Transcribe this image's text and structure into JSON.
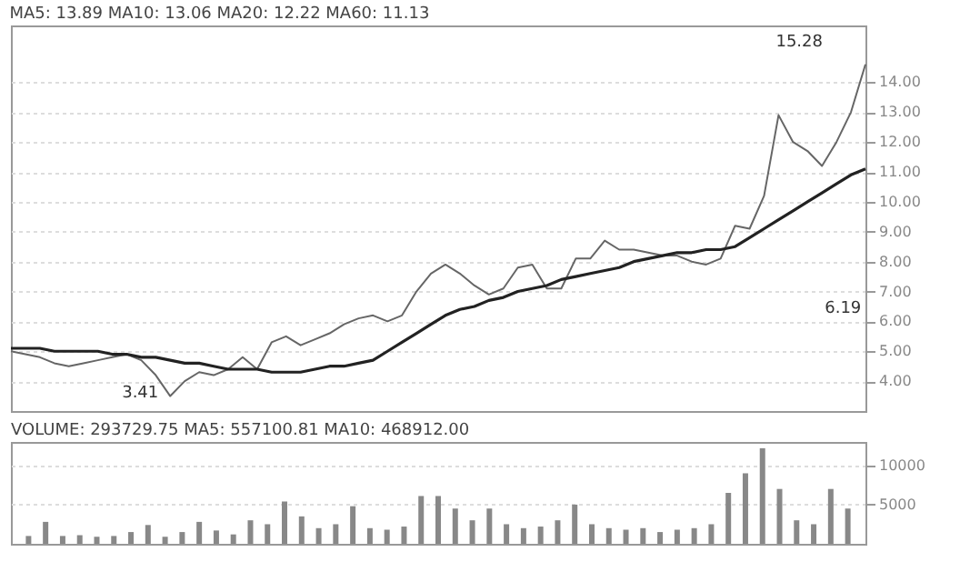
{
  "chart_data": [
    {
      "type": "line",
      "subtitle": "MA5: 13.89  MA10: 13.06  MA20: 12.22  MA60: 11.13",
      "categories": [
        null,
        null,
        null,
        null,
        null,
        null,
        null,
        null,
        null,
        null,
        null,
        null,
        null,
        null,
        null,
        null,
        null,
        null,
        null,
        null,
        null,
        null,
        null,
        null,
        null,
        null,
        null,
        null,
        null,
        null,
        null,
        null,
        null,
        null,
        null,
        null,
        null,
        null,
        null,
        null,
        null,
        null,
        null,
        null,
        null,
        null,
        null,
        null,
        null,
        null,
        null,
        null,
        null,
        null,
        null,
        null,
        null,
        null,
        null,
        null
      ],
      "series": [
        {
          "color": "#666666",
          "values": [
            5.0,
            4.9,
            4.8,
            4.6,
            4.5,
            4.6,
            4.7,
            4.8,
            4.9,
            4.7,
            4.2,
            3.5,
            4.0,
            4.3,
            4.2,
            4.4,
            4.8,
            4.4,
            5.3,
            5.5,
            5.2,
            5.4,
            5.6,
            5.9,
            6.1,
            6.2,
            6.0,
            6.2,
            7.0,
            7.6,
            7.9,
            7.6,
            7.2,
            6.9,
            7.1,
            7.8,
            7.9,
            7.1,
            7.1,
            8.1,
            8.1,
            8.7,
            8.4,
            8.4,
            8.3,
            8.2,
            8.2,
            8.0,
            7.9,
            8.1,
            9.2,
            9.1,
            10.2,
            12.9,
            12.0,
            11.7,
            11.2,
            12.0,
            13.0,
            14.6
          ]
        },
        {
          "color": "#222222",
          "values": [
            5.1,
            5.1,
            5.1,
            5.0,
            5.0,
            5.0,
            5.0,
            4.9,
            4.9,
            4.8,
            4.8,
            4.7,
            4.6,
            4.6,
            4.5,
            4.4,
            4.4,
            4.4,
            4.3,
            4.3,
            4.3,
            4.4,
            4.5,
            4.5,
            4.6,
            4.7,
            5.0,
            5.3,
            5.6,
            5.9,
            6.2,
            6.4,
            6.5,
            6.7,
            6.8,
            7.0,
            7.1,
            7.2,
            7.4,
            7.5,
            7.6,
            7.7,
            7.8,
            8.0,
            8.1,
            8.2,
            8.3,
            8.3,
            8.4,
            8.4,
            8.5,
            8.8,
            9.1,
            9.4,
            9.7,
            10.0,
            10.3,
            10.6,
            10.9,
            11.1
          ]
        }
      ],
      "ylim": [
        3.0,
        15.9
      ],
      "yticks": [
        {
          "value": 4,
          "label": "4.00"
        },
        {
          "value": 5,
          "label": "5.00"
        },
        {
          "value": 6,
          "label": "6.00"
        },
        {
          "value": 7,
          "label": "7.00"
        },
        {
          "value": 8,
          "label": "8.00"
        },
        {
          "value": 9,
          "label": "9.00"
        },
        {
          "value": 10,
          "label": "10.00"
        },
        {
          "value": 11,
          "label": "11.00"
        },
        {
          "value": 12,
          "label": "12.00"
        },
        {
          "value": 13,
          "label": "13.00"
        },
        {
          "value": 14,
          "label": "14.00"
        }
      ],
      "grid": "y",
      "tick_labels": "y",
      "annotations": [
        "15.28",
        "3.41",
        "6.19"
      ]
    },
    {
      "type": "bar",
      "subtitle": "VOLUME: 293729.75  MA5: 557100.81  MA10: 468912.00",
      "categories": [
        null,
        null,
        null,
        null,
        null,
        null,
        null,
        null,
        null,
        null,
        null,
        null,
        null,
        null,
        null,
        null,
        null,
        null,
        null,
        null,
        null,
        null,
        null,
        null,
        null,
        null,
        null,
        null,
        null,
        null,
        null,
        null,
        null,
        null,
        null,
        null,
        null,
        null,
        null,
        null,
        null,
        null,
        null,
        null,
        null,
        null,
        null,
        null,
        null
      ],
      "color": "#888888",
      "values": [
        1000,
        2800,
        1000,
        1100,
        900,
        1000,
        1500,
        2400,
        900,
        1500,
        2800,
        1700,
        1200,
        3000,
        2500,
        5400,
        3500,
        2000,
        2500,
        4800,
        2000,
        1800,
        2200,
        6100,
        6100,
        4500,
        3000,
        4500,
        2500,
        2000,
        2200,
        3000,
        5000,
        2500,
        2000,
        1800,
        2000,
        1500,
        1800,
        2000,
        2500,
        6500,
        9000,
        12200,
        7000,
        3000,
        2500,
        7000,
        4500
      ],
      "ylim": [
        0,
        13000
      ],
      "yticks": [
        5000,
        10000
      ],
      "grid": "y",
      "tick_labels": "y"
    }
  ]
}
